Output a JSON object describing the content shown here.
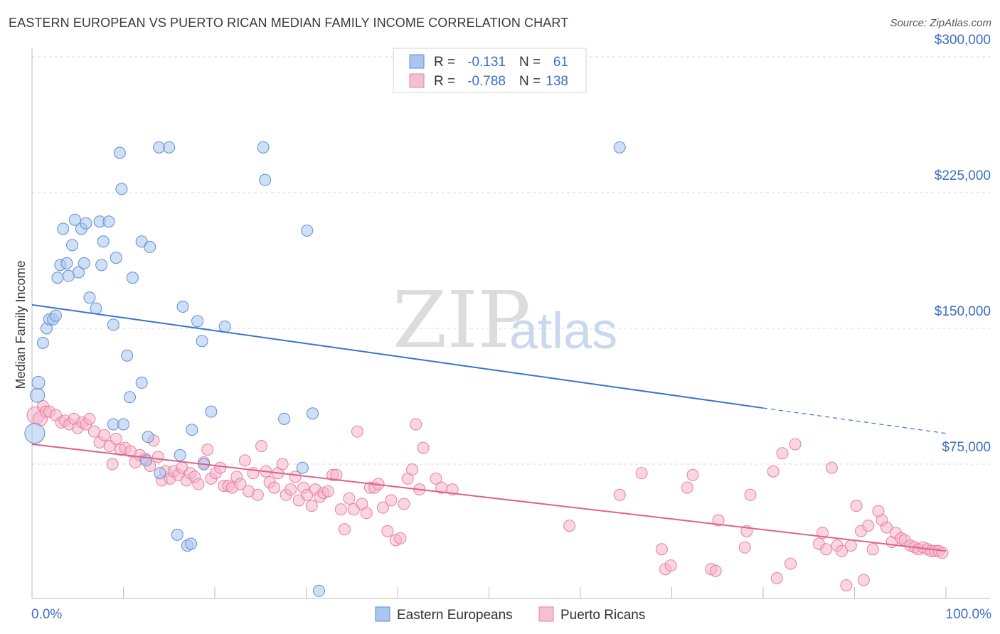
{
  "title": "EASTERN EUROPEAN VS PUERTO RICAN MEDIAN FAMILY INCOME CORRELATION CHART",
  "source": "Source: ZipAtlas.com",
  "watermark": {
    "zip": "ZIP",
    "atlas": "atlas"
  },
  "colors": {
    "blue_fill": "#a8c6ef",
    "blue_stroke": "#5b8fd6",
    "blue_line": "#3a72d4",
    "pink_fill": "#f5b5cb",
    "pink_stroke": "#e77fa2",
    "pink_line": "#e0608c",
    "axis_text": "#3b6fc4",
    "grid": "#d8d8d8"
  },
  "legend_top": {
    "rows": [
      {
        "r_label": "R =",
        "r_value": "-0.131",
        "n_label": "N =",
        "n_value": "61",
        "color": "blue"
      },
      {
        "r_label": "R =",
        "r_value": "-0.788",
        "n_label": "N =",
        "n_value": "138",
        "color": "pink"
      }
    ]
  },
  "legend_bottom": [
    {
      "label": "Eastern Europeans",
      "color": "blue"
    },
    {
      "label": "Puerto Ricans",
      "color": "pink"
    }
  ],
  "chart_data": {
    "type": "scatter",
    "title": "EASTERN EUROPEAN VS PUERTO RICAN MEDIAN FAMILY INCOME CORRELATION CHART",
    "xlabel": "",
    "ylabel": "Median Family Income",
    "xlim": [
      0,
      100
    ],
    "ylim": [
      0,
      310000
    ],
    "x_tick_labels": [
      "0.0%",
      "100.0%"
    ],
    "y_ticks": [
      75000,
      150000,
      225000,
      300000
    ],
    "y_tick_labels": [
      "$75,000",
      "$150,000",
      "$225,000",
      "$300,000"
    ],
    "grid": true,
    "legend_placement": "top-center",
    "series": [
      {
        "name": "Eastern Europeans",
        "color": "blue",
        "trend": {
          "x0": 0,
          "y0": 163000,
          "x1": 80,
          "y1": 106000,
          "dash_to_x": 100,
          "dash_to_y": 92000
        },
        "points": [
          [
            0.3,
            92000,
            14
          ],
          [
            0.6,
            113000,
            10
          ],
          [
            0.7,
            120000,
            9
          ],
          [
            1.2,
            142000,
            8
          ],
          [
            1.6,
            150000,
            8
          ],
          [
            1.9,
            155000,
            8
          ],
          [
            2.3,
            155000,
            8
          ],
          [
            2.6,
            157000,
            8
          ],
          [
            2.8,
            178000,
            8
          ],
          [
            3.1,
            185000,
            8
          ],
          [
            3.4,
            205000,
            8
          ],
          [
            3.8,
            186000,
            8
          ],
          [
            4.0,
            179000,
            8
          ],
          [
            4.4,
            196000,
            8
          ],
          [
            4.7,
            210000,
            8
          ],
          [
            5.1,
            181000,
            8
          ],
          [
            5.4,
            205000,
            8
          ],
          [
            5.7,
            186000,
            8
          ],
          [
            5.9,
            208000,
            8
          ],
          [
            6.3,
            167000,
            8
          ],
          [
            7.0,
            161000,
            8
          ],
          [
            7.4,
            209000,
            8
          ],
          [
            7.6,
            185000,
            8
          ],
          [
            7.8,
            198000,
            8
          ],
          [
            8.4,
            209000,
            8
          ],
          [
            8.9,
            152000,
            8
          ],
          [
            9.2,
            189000,
            8
          ],
          [
            9.6,
            247000,
            8
          ],
          [
            9.8,
            227000,
            8
          ],
          [
            10.4,
            135000,
            8
          ],
          [
            10.7,
            112000,
            8
          ],
          [
            11.0,
            178000,
            8
          ],
          [
            12.0,
            198000,
            8
          ],
          [
            12.5,
            77000,
            8
          ],
          [
            12.7,
            90000,
            8
          ],
          [
            12.9,
            195000,
            8
          ],
          [
            13.9,
            250000,
            8
          ],
          [
            15.0,
            250000,
            8
          ],
          [
            15.9,
            36000,
            8
          ],
          [
            16.2,
            80000,
            8
          ],
          [
            16.5,
            162000,
            8
          ],
          [
            17.0,
            30000,
            8
          ],
          [
            17.4,
            31000,
            8
          ],
          [
            17.5,
            94000,
            8
          ],
          [
            18.1,
            154000,
            8
          ],
          [
            18.6,
            143000,
            8
          ],
          [
            19.6,
            104000,
            8
          ],
          [
            21.1,
            151000,
            8
          ],
          [
            25.3,
            250000,
            8
          ],
          [
            25.5,
            232000,
            8
          ],
          [
            27.6,
            100000,
            8
          ],
          [
            29.6,
            73000,
            8
          ],
          [
            30.1,
            204000,
            8
          ],
          [
            30.7,
            103000,
            8
          ],
          [
            8.9,
            97000,
            8
          ],
          [
            14.0,
            70000,
            8
          ],
          [
            18.8,
            75000,
            8
          ],
          [
            31.4,
            5000,
            8
          ],
          [
            64.3,
            250000,
            8
          ],
          [
            10.0,
            97000,
            8
          ],
          [
            12.0,
            120000,
            8
          ]
        ]
      },
      {
        "name": "Puerto Ricans",
        "color": "pink",
        "trend": {
          "x0": 0,
          "y0": 86000,
          "x1": 100,
          "y1": 27000
        },
        "points": [
          [
            0.4,
            102000,
            12
          ],
          [
            0.9,
            100000,
            10
          ],
          [
            1.2,
            107000,
            8
          ],
          [
            1.5,
            104000,
            8
          ],
          [
            1.9,
            104000,
            8
          ],
          [
            2.6,
            102000,
            8
          ],
          [
            3.2,
            98000,
            8
          ],
          [
            3.6,
            99000,
            8
          ],
          [
            4.1,
            97000,
            8
          ],
          [
            4.6,
            100000,
            8
          ],
          [
            5.0,
            95000,
            8
          ],
          [
            5.5,
            98000,
            8
          ],
          [
            5.9,
            97000,
            8
          ],
          [
            6.3,
            100000,
            8
          ],
          [
            6.8,
            93000,
            8
          ],
          [
            7.4,
            87000,
            8
          ],
          [
            7.9,
            91000,
            8
          ],
          [
            8.5,
            85000,
            8
          ],
          [
            8.8,
            75000,
            8
          ],
          [
            9.2,
            89000,
            8
          ],
          [
            9.7,
            83000,
            8
          ],
          [
            10.2,
            84000,
            8
          ],
          [
            10.8,
            82000,
            8
          ],
          [
            11.3,
            76000,
            8
          ],
          [
            11.8,
            80000,
            8
          ],
          [
            12.4,
            78000,
            8
          ],
          [
            12.9,
            74000,
            8
          ],
          [
            13.3,
            88000,
            8
          ],
          [
            13.8,
            79000,
            8
          ],
          [
            14.2,
            66000,
            8
          ],
          [
            14.6,
            71000,
            8
          ],
          [
            15.1,
            67000,
            8
          ],
          [
            15.5,
            71000,
            8
          ],
          [
            16.0,
            69000,
            8
          ],
          [
            16.4,
            73000,
            8
          ],
          [
            16.9,
            66000,
            8
          ],
          [
            17.3,
            70000,
            8
          ],
          [
            17.8,
            68000,
            8
          ],
          [
            18.2,
            64000,
            8
          ],
          [
            18.8,
            76000,
            8
          ],
          [
            19.2,
            83000,
            8
          ],
          [
            19.6,
            67000,
            8
          ],
          [
            20.1,
            70000,
            8
          ],
          [
            20.6,
            73000,
            8
          ],
          [
            21.0,
            63000,
            8
          ],
          [
            21.5,
            63000,
            8
          ],
          [
            21.9,
            62000,
            8
          ],
          [
            22.4,
            68000,
            8
          ],
          [
            22.8,
            64000,
            8
          ],
          [
            23.3,
            77000,
            8
          ],
          [
            23.7,
            60000,
            8
          ],
          [
            24.2,
            70000,
            8
          ],
          [
            24.7,
            58000,
            8
          ],
          [
            25.1,
            85000,
            8
          ],
          [
            25.6,
            71000,
            8
          ],
          [
            26.0,
            65000,
            8
          ],
          [
            26.5,
            62000,
            8
          ],
          [
            26.9,
            70000,
            8
          ],
          [
            27.4,
            75000,
            8
          ],
          [
            27.8,
            58000,
            8
          ],
          [
            28.3,
            61000,
            8
          ],
          [
            28.8,
            68000,
            8
          ],
          [
            29.2,
            55000,
            8
          ],
          [
            29.7,
            62000,
            8
          ],
          [
            30.1,
            58000,
            8
          ],
          [
            30.6,
            52000,
            8
          ],
          [
            31.0,
            61000,
            8
          ],
          [
            31.5,
            57000,
            8
          ],
          [
            31.9,
            59000,
            8
          ],
          [
            32.4,
            60000,
            8
          ],
          [
            32.9,
            69000,
            8
          ],
          [
            33.3,
            69000,
            8
          ],
          [
            33.8,
            50000,
            8
          ],
          [
            34.2,
            39000,
            8
          ],
          [
            34.7,
            56000,
            8
          ],
          [
            35.2,
            50000,
            8
          ],
          [
            35.6,
            93000,
            8
          ],
          [
            36.1,
            53000,
            8
          ],
          [
            36.6,
            48000,
            8
          ],
          [
            37.0,
            62000,
            8
          ],
          [
            37.5,
            62000,
            8
          ],
          [
            37.9,
            64000,
            8
          ],
          [
            38.4,
            51000,
            8
          ],
          [
            38.9,
            38000,
            8
          ],
          [
            39.3,
            55000,
            8
          ],
          [
            39.8,
            33000,
            8
          ],
          [
            40.3,
            34000,
            8
          ],
          [
            40.7,
            53000,
            8
          ],
          [
            41.1,
            67000,
            8
          ],
          [
            41.6,
            72000,
            8
          ],
          [
            42.0,
            97000,
            8
          ],
          [
            42.4,
            61000,
            8
          ],
          [
            42.8,
            84000,
            8
          ],
          [
            44.2,
            67000,
            8
          ],
          [
            44.8,
            62000,
            8
          ],
          [
            46.0,
            61000,
            8
          ],
          [
            58.8,
            41000,
            8
          ],
          [
            64.3,
            58000,
            8
          ],
          [
            66.7,
            70000,
            8
          ],
          [
            68.9,
            28000,
            8
          ],
          [
            69.3,
            17000,
            8
          ],
          [
            69.9,
            19000,
            8
          ],
          [
            71.7,
            62000,
            8
          ],
          [
            72.3,
            69000,
            8
          ],
          [
            74.3,
            17000,
            8
          ],
          [
            74.8,
            16000,
            8
          ],
          [
            75.1,
            44000,
            8
          ],
          [
            78.0,
            29000,
            8
          ],
          [
            78.2,
            38000,
            8
          ],
          [
            78.6,
            58000,
            8
          ],
          [
            81.1,
            71000,
            8
          ],
          [
            81.5,
            12000,
            8
          ],
          [
            82.1,
            81000,
            8
          ],
          [
            83.0,
            20000,
            8
          ],
          [
            83.5,
            86000,
            8
          ],
          [
            86.1,
            31000,
            8
          ],
          [
            86.5,
            37000,
            8
          ],
          [
            86.9,
            28000,
            8
          ],
          [
            87.5,
            73000,
            8
          ],
          [
            88.1,
            30000,
            8
          ],
          [
            88.6,
            27000,
            8
          ],
          [
            89.1,
            8000,
            8
          ],
          [
            89.6,
            30000,
            8
          ],
          [
            90.2,
            52000,
            8
          ],
          [
            90.7,
            38000,
            8
          ],
          [
            91.0,
            11000,
            8
          ],
          [
            91.5,
            41000,
            8
          ],
          [
            92.0,
            28000,
            8
          ],
          [
            92.6,
            49000,
            8
          ],
          [
            93.0,
            44000,
            8
          ],
          [
            93.5,
            40000,
            8
          ],
          [
            94.1,
            32000,
            8
          ],
          [
            94.5,
            37000,
            8
          ],
          [
            95.1,
            34000,
            8
          ],
          [
            95.5,
            33000,
            8
          ],
          [
            96.1,
            30000,
            8
          ],
          [
            96.6,
            29000,
            8
          ],
          [
            97.0,
            28000,
            8
          ],
          [
            97.5,
            29000,
            8
          ],
          [
            98.0,
            28000,
            8
          ],
          [
            98.4,
            27000,
            8
          ],
          [
            98.8,
            27000,
            8
          ],
          [
            99.2,
            27000,
            8
          ],
          [
            99.6,
            26000,
            8
          ]
        ]
      }
    ]
  }
}
